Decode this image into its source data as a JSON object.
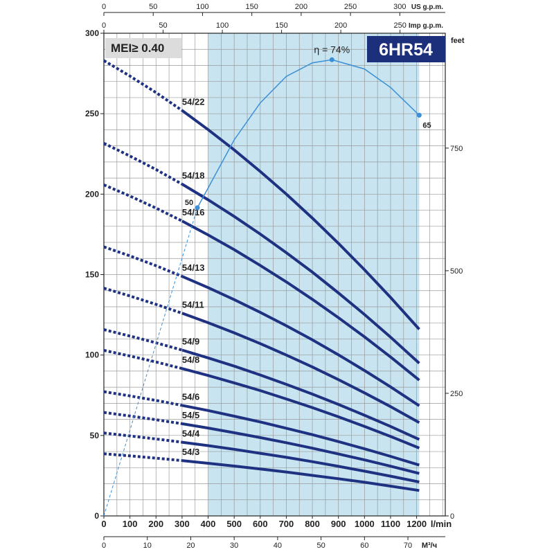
{
  "chart_data": {
    "type": "line",
    "title": "6HR54",
    "badge": "MEI≥ 0.40",
    "x": [
      0,
      100,
      200,
      300,
      400,
      500,
      600,
      700,
      800,
      900,
      1000,
      1100,
      1210
    ],
    "xlim": [
      0,
      1310
    ],
    "xticks": [
      0,
      100,
      200,
      300,
      400,
      500,
      600,
      700,
      800,
      900,
      1000,
      1100,
      1200
    ],
    "x_label": "l/min",
    "ylim": [
      0,
      300
    ],
    "yticks": [
      0,
      50,
      100,
      150,
      200,
      250,
      300
    ],
    "y2lim": [
      0,
      984.25
    ],
    "y2ticks": [
      0,
      250,
      500,
      750
    ],
    "y2_label": "feet",
    "top_axes": [
      {
        "label": "US g.p.m.",
        "lim": [
          0,
          346.1
        ],
        "ticks": [
          0,
          50,
          100,
          150,
          200,
          250,
          300
        ]
      },
      {
        "label": "Imp g.p.m.",
        "lim": [
          0,
          288.2
        ],
        "ticks": [
          0,
          50,
          100,
          150,
          200,
          250
        ]
      }
    ],
    "bottom_axis2": {
      "label": "M³/ч",
      "lim": [
        0,
        78.6
      ],
      "ticks": [
        0,
        10,
        20,
        30,
        40,
        50,
        60,
        70
      ]
    },
    "recommended_range": [
      400,
      1210
    ],
    "solid_from": 300,
    "grid_step": {
      "x": 50,
      "y": 10
    },
    "series": [
      {
        "name": "54/22",
        "color": "#1f3282",
        "values": [
          283.0,
          273.4,
          263.1,
          252.0,
          240.1,
          227.5,
          214.1,
          200.0,
          185.1,
          169.4,
          153.0,
          135.8,
          116.0
        ]
      },
      {
        "name": "54/18",
        "color": "#1f3282",
        "values": [
          231.6,
          223.7,
          215.3,
          206.2,
          196.5,
          186.1,
          175.2,
          163.6,
          151.5,
          138.6,
          125.2,
          111.1,
          94.9
        ]
      },
      {
        "name": "54/16",
        "color": "#1f3282",
        "values": [
          205.8,
          198.8,
          191.3,
          183.3,
          174.6,
          165.5,
          155.7,
          145.5,
          134.6,
          123.2,
          111.3,
          98.8,
          84.4
        ]
      },
      {
        "name": "54/13",
        "color": "#1f3282",
        "values": [
          167.2,
          161.6,
          155.5,
          148.9,
          141.9,
          134.4,
          126.5,
          118.2,
          109.4,
          100.1,
          90.4,
          80.2,
          68.5
        ]
      },
      {
        "name": "54/11",
        "color": "#1f3282",
        "values": [
          141.5,
          136.7,
          131.5,
          126.0,
          120.1,
          113.8,
          107.1,
          100.0,
          92.6,
          84.7,
          76.5,
          67.9,
          58.0
        ]
      },
      {
        "name": "54/9",
        "color": "#1f3282",
        "values": [
          115.8,
          111.8,
          107.6,
          103.1,
          98.2,
          93.1,
          87.6,
          81.8,
          75.7,
          69.3,
          62.6,
          55.6,
          47.5
        ]
      },
      {
        "name": "54/8",
        "color": "#1f3282",
        "values": [
          102.9,
          99.4,
          95.7,
          91.6,
          87.3,
          82.7,
          77.9,
          72.7,
          67.3,
          61.6,
          55.6,
          49.4,
          42.2
        ]
      },
      {
        "name": "54/6",
        "color": "#1f3282",
        "values": [
          77.2,
          74.6,
          71.8,
          68.7,
          65.5,
          62.0,
          58.4,
          54.5,
          50.5,
          46.2,
          41.7,
          37.0,
          31.6
        ]
      },
      {
        "name": "54/5",
        "color": "#1f3282",
        "values": [
          64.3,
          62.1,
          59.8,
          57.3,
          54.6,
          51.7,
          48.7,
          45.5,
          42.1,
          38.5,
          34.8,
          30.9,
          26.4
        ]
      },
      {
        "name": "54/4",
        "color": "#1f3282",
        "values": [
          51.5,
          49.7,
          47.8,
          45.8,
          43.7,
          41.4,
          38.9,
          36.4,
          33.7,
          30.8,
          27.8,
          24.7,
          21.1
        ]
      },
      {
        "name": "54/3",
        "color": "#1f3282",
        "values": [
          38.6,
          37.3,
          35.9,
          34.4,
          32.7,
          31.0,
          29.2,
          27.3,
          25.2,
          23.1,
          20.9,
          18.5,
          15.8
        ]
      }
    ],
    "efficiency": {
      "x": [
        0,
        100,
        200,
        300,
        359,
        500,
        600,
        700,
        800,
        875,
        1000,
        1100,
        1210
      ],
      "values": [
        0,
        13.9,
        27.9,
        41.8,
        50,
        61,
        67,
        71.3,
        73.5,
        74,
        72.5,
        69.5,
        65
      ],
      "value_labels": [
        null,
        null,
        null,
        null,
        "50",
        null,
        null,
        null,
        null,
        "η = 74%",
        null,
        null,
        "65"
      ],
      "lim": [
        0,
        78.3
      ],
      "solid_from": 359,
      "color": "#3b8fd6"
    }
  }
}
